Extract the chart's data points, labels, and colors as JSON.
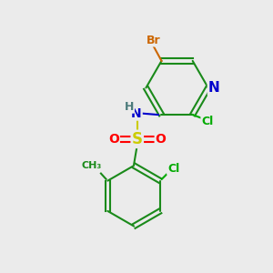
{
  "bg_color": "#ebebeb",
  "atom_colors": {
    "C": "#1a8a1a",
    "N": "#0000cc",
    "O": "#ff0000",
    "S": "#cccc00",
    "Br": "#cc6600",
    "Cl": "#00aa00",
    "H": "#4a7a7a"
  },
  "bond_color": "#1a8a1a",
  "figsize": [
    3.0,
    3.0
  ],
  "dpi": 100
}
